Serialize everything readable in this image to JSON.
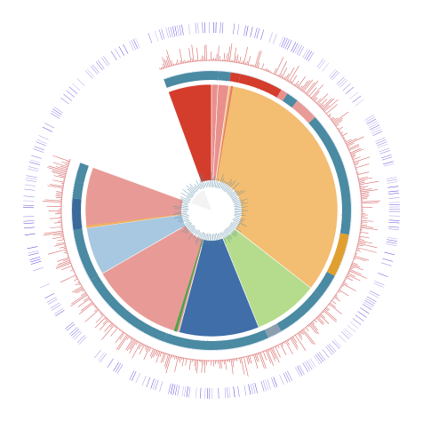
{
  "colors": {
    "band_dark": "#4a8aa2",
    "band_light_fill": "#dcdaf0",
    "band_tick": "#3b2ad6",
    "bars_red": "#d96a6a",
    "bars_blue": "#7fa9d6",
    "ring_gap": "#ffffff"
  },
  "icons": [
    "tree-figure"
  ],
  "figure": {
    "type": "circular phylogenetic tree with annotation rings",
    "wedges": [
      {
        "id": "red",
        "color": "#d43d2c",
        "start_deg": -20,
        "end_deg": 0
      },
      {
        "id": "pink_thin_1",
        "color": "#e9908d",
        "start_deg": 0,
        "end_deg": 3
      },
      {
        "id": "pink_thin_2",
        "color": "#e9908d",
        "start_deg": 3,
        "end_deg": 8
      },
      {
        "id": "orange",
        "color": "#f3bd72",
        "start_deg": 8,
        "end_deg": 128
      },
      {
        "id": "green",
        "color": "#b5dc8c",
        "start_deg": 128,
        "end_deg": 158
      },
      {
        "id": "blue",
        "color": "#3f6ea8",
        "start_deg": 158,
        "end_deg": 195
      },
      {
        "id": "pink_lower",
        "color": "#e89b96",
        "start_deg": 195,
        "end_deg": 240
      },
      {
        "id": "lightblue",
        "color": "#a8c7e0",
        "start_deg": 240,
        "end_deg": 262
      },
      {
        "id": "pink_upper",
        "color": "#e89b96",
        "start_deg": 262,
        "end_deg": 290
      }
    ],
    "gap_deg": [
      290,
      340
    ],
    "inner_band": {
      "start_deg": -20,
      "end_deg": 290
    },
    "outer_bars": {
      "start_deg": -20,
      "end_deg": 290
    },
    "outer_band": {
      "start_deg": -70,
      "end_deg": 290
    }
  }
}
